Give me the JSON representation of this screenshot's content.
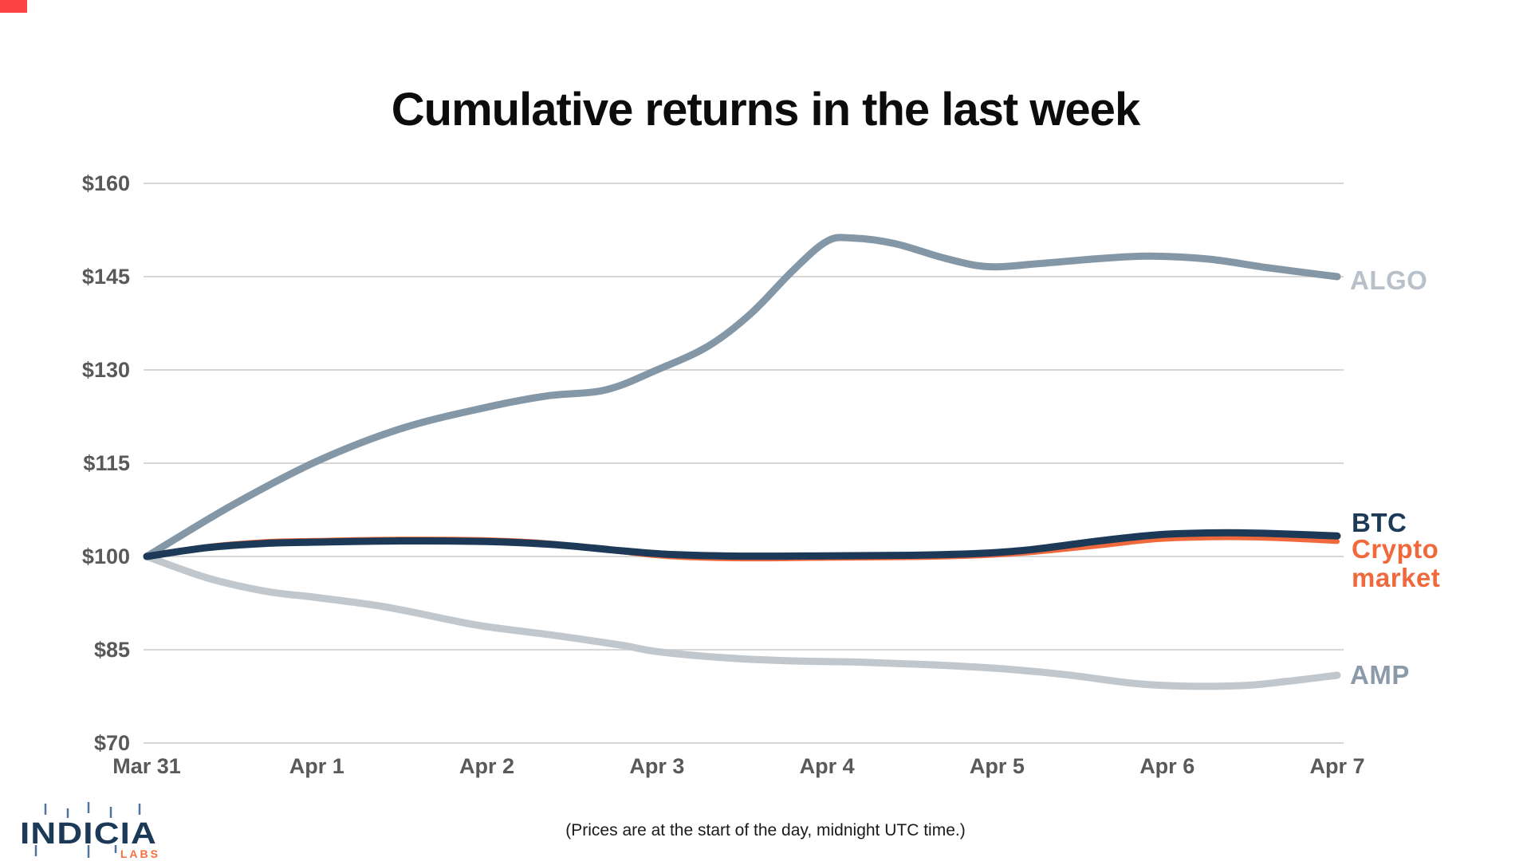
{
  "page": {
    "background": "#ffffff"
  },
  "corner_mark": {
    "color": "#fb4141"
  },
  "header": {
    "title": "Cumulative returns in the last week"
  },
  "footer": {
    "note": "(Prices are at the start of the day, midnight UTC time.)"
  },
  "logo": {
    "name": "INDICIA",
    "sub": "LABS",
    "navy": "#1c3a57",
    "wick_color": "#54749b",
    "sub_color": "#f4703f"
  },
  "colors": {
    "title": "#0c0c0c",
    "axis_label": "#58595b",
    "gridline": "#d7d7d7",
    "footer_text": "#1a1a1a",
    "algo_line": "#8497a6",
    "algo_label": "#b8c1c9",
    "amp_line": "#c0c7cd",
    "amp_label": "#8b9aa9",
    "btc": "#1c3a57",
    "crypto": "#f0693c"
  },
  "legend": {
    "algo": "ALGO",
    "btc": "BTC",
    "crypto_line1": "Crypto",
    "crypto_line2": "market",
    "amp": "AMP"
  },
  "chart_data": {
    "type": "line",
    "title": "Cumulative returns in the last week",
    "x_categories": [
      "Mar 31",
      "Apr 1",
      "Apr 2",
      "Apr 3",
      "Apr 4",
      "Apr 5",
      "Apr 6",
      "Apr 7"
    ],
    "y_tick_labels": [
      "$160",
      "$145",
      "$130",
      "$115",
      "$100",
      "$85",
      "$70"
    ],
    "y_tick_values": [
      160,
      145,
      130,
      115,
      100,
      85,
      70
    ],
    "ylim": [
      70,
      160
    ],
    "xlabel": "",
    "ylabel": "",
    "grid": "horizontal",
    "baseline_value": 100,
    "legend_position": "right",
    "series": [
      {
        "id": "algo",
        "name": "ALGO",
        "color": "#8497a6",
        "stroke_width": 9,
        "values_by_day": [
          100,
          115.3,
          124,
          130,
          150.7,
          146.8,
          148.2,
          145
        ],
        "curve_points": [
          [
            0,
            100
          ],
          [
            0.5,
            108.2
          ],
          [
            1,
            115.3
          ],
          [
            1.5,
            120.6
          ],
          [
            2,
            124
          ],
          [
            2.35,
            125.8
          ],
          [
            2.7,
            126.8
          ],
          [
            3,
            130
          ],
          [
            3.3,
            133.8
          ],
          [
            3.55,
            139
          ],
          [
            3.8,
            146
          ],
          [
            4,
            150.7
          ],
          [
            4.15,
            151.2
          ],
          [
            4.4,
            150.3
          ],
          [
            4.7,
            147.9
          ],
          [
            4.95,
            146.6
          ],
          [
            5.25,
            147.1
          ],
          [
            5.6,
            147.9
          ],
          [
            5.9,
            148.3
          ],
          [
            6.25,
            147.8
          ],
          [
            6.6,
            146.4
          ],
          [
            7,
            145
          ]
        ]
      },
      {
        "id": "amp",
        "name": "AMP",
        "color": "#c0c7cd",
        "stroke_width": 9,
        "values_by_day": [
          100,
          93.4,
          88.7,
          84.7,
          83,
          82,
          79.2,
          80.9
        ],
        "curve_points": [
          [
            0,
            100
          ],
          [
            0.35,
            96.6
          ],
          [
            0.7,
            94.4
          ],
          [
            1,
            93.4
          ],
          [
            1.4,
            91.9
          ],
          [
            1.8,
            89.7
          ],
          [
            2,
            88.7
          ],
          [
            2.4,
            87.3
          ],
          [
            2.8,
            85.7
          ],
          [
            3,
            84.7
          ],
          [
            3.4,
            83.7
          ],
          [
            3.8,
            83.2
          ],
          [
            4.2,
            83
          ],
          [
            4.6,
            82.6
          ],
          [
            5,
            82
          ],
          [
            5.4,
            81
          ],
          [
            5.8,
            79.6
          ],
          [
            6.1,
            79.15
          ],
          [
            6.45,
            79.25
          ],
          [
            6.7,
            79.9
          ],
          [
            7,
            80.9
          ]
        ]
      },
      {
        "id": "crypto-market",
        "name": "Crypto market",
        "color": "#f0693c",
        "stroke_width": 6,
        "values_by_day": [
          100,
          102.6,
          102.7,
          99.9,
          99.7,
          100.4,
          103,
          102.4
        ],
        "curve_points": [
          [
            0,
            100
          ],
          [
            0.35,
            101.6
          ],
          [
            0.7,
            102.4
          ],
          [
            1,
            102.6
          ],
          [
            1.5,
            102.8
          ],
          [
            2,
            102.7
          ],
          [
            2.4,
            102.1
          ],
          [
            2.8,
            100.7
          ],
          [
            3.1,
            99.9
          ],
          [
            3.5,
            99.6
          ],
          [
            4,
            99.7
          ],
          [
            4.5,
            99.8
          ],
          [
            4.9,
            100.1
          ],
          [
            5.2,
            100.6
          ],
          [
            5.6,
            101.7
          ],
          [
            5.95,
            102.7
          ],
          [
            6.3,
            103
          ],
          [
            6.6,
            102.9
          ],
          [
            7,
            102.4
          ]
        ]
      },
      {
        "id": "btc",
        "name": "BTC",
        "color": "#1c3a57",
        "stroke_width": 9,
        "values_by_day": [
          100,
          102.3,
          102.4,
          100.3,
          100.1,
          100.8,
          103.7,
          103.3
        ],
        "curve_points": [
          [
            0,
            100
          ],
          [
            0.35,
            101.4
          ],
          [
            0.7,
            102.1
          ],
          [
            1,
            102.3
          ],
          [
            1.5,
            102.5
          ],
          [
            2,
            102.4
          ],
          [
            2.4,
            101.9
          ],
          [
            2.8,
            100.9
          ],
          [
            3.1,
            100.3
          ],
          [
            3.5,
            100.05
          ],
          [
            4,
            100.1
          ],
          [
            4.5,
            100.2
          ],
          [
            4.9,
            100.5
          ],
          [
            5.2,
            101.1
          ],
          [
            5.6,
            102.5
          ],
          [
            5.95,
            103.5
          ],
          [
            6.3,
            103.8
          ],
          [
            6.6,
            103.7
          ],
          [
            7,
            103.3
          ]
        ]
      }
    ]
  }
}
